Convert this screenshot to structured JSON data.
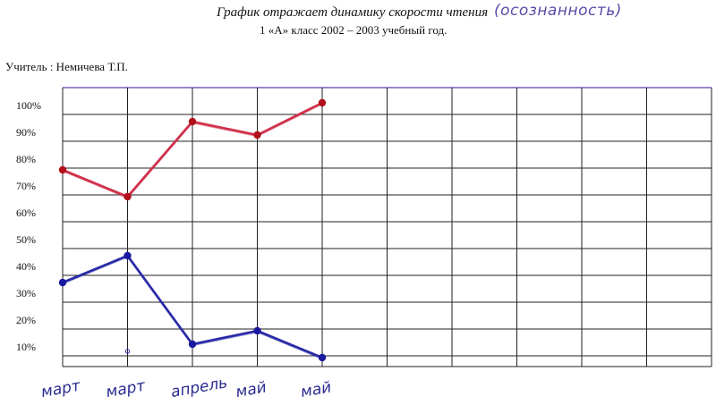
{
  "header": {
    "title": "График отражает динамику скорости чтения",
    "title_note": "(осознанность)",
    "subtitle": "1 «А» класс 2002 – 2003 учебный год.",
    "teacher": "Учитель : Немичева Т.П."
  },
  "colors": {
    "grid": "#222222",
    "top_line": "#7a5cc0",
    "red_series": "#d0304a",
    "red_marker": "#b0101a",
    "blue_series": "#2a2aa8",
    "blue_marker": "#1a1aa0",
    "month_labels": "#2a2a90"
  },
  "chart_data": {
    "type": "line",
    "title": "График отражает динамику скорости чтения (осознанность)",
    "categories": [
      "март",
      "март",
      "апрель",
      "май",
      "май"
    ],
    "y_ticks": [
      "100%",
      "90%",
      "80%",
      "70%",
      "60%",
      "50%",
      "40%",
      "30%",
      "20%",
      "10%"
    ],
    "ylim": [
      5,
      105
    ],
    "grid": true,
    "grid_columns": 10,
    "series": [
      {
        "color": "red",
        "values": [
          76,
          66,
          94,
          89,
          101
        ]
      },
      {
        "color": "blue",
        "values": [
          34,
          44,
          11,
          16,
          6
        ]
      }
    ]
  }
}
